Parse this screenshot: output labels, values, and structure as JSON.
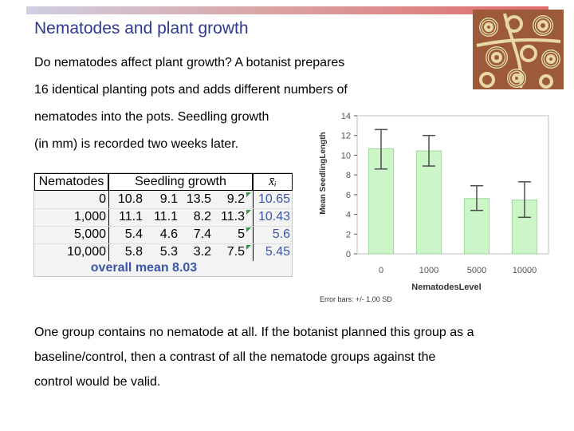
{
  "slide": {
    "title": "Nematodes and plant growth",
    "intro_lines": [
      "Do nematodes affect plant growth? A botanist prepares",
      "16 identical planting pots and adds different numbers of",
      "nematodes into the pots. Seedling growth",
      "(in mm) is recorded two weeks later."
    ],
    "bottom_lines": [
      "One group contains no nematode at all. If the botanist planned this group as a",
      "baseline/control, then a contrast of all the nematode groups against the",
      "control would be valid."
    ],
    "photo_icon": "nematodes-photo"
  },
  "table": {
    "header_nematodes": "Nematodes",
    "header_growth": "Seedling growth",
    "header_mean": "x̄ᵢ",
    "rows": [
      {
        "level": "0",
        "values": [
          "10.8",
          "9.1",
          "13.5",
          "9.2"
        ],
        "mean": "10.65"
      },
      {
        "level": "1,000",
        "values": [
          "11.1",
          "11.1",
          "8.2",
          "11.3"
        ],
        "mean": "10.43"
      },
      {
        "level": "5,000",
        "values": [
          "5.4",
          "4.6",
          "7.4",
          "5"
        ],
        "mean": "5.6"
      },
      {
        "level": "10,000",
        "values": [
          "5.8",
          "5.3",
          "3.2",
          "7.5"
        ],
        "mean": "5.45"
      }
    ],
    "overall": "overall mean 8.03"
  },
  "chart_data": {
    "type": "bar",
    "categories": [
      "0",
      "1000",
      "5000",
      "10000"
    ],
    "values": [
      10.65,
      10.43,
      5.6,
      5.45
    ],
    "error_low": [
      8.6,
      8.9,
      4.4,
      3.7
    ],
    "error_high": [
      12.6,
      12.0,
      6.9,
      7.3
    ],
    "xlabel": "NematodesLevel",
    "ylabel": "Mean SeedlingLength",
    "ylim": [
      0,
      14
    ],
    "yticks": [
      "0",
      "2",
      "4",
      "6",
      "8",
      "10",
      "12",
      "14"
    ],
    "footnote": "Error bars: +/- 1.00 SD",
    "bar_color": "#ccf5c8",
    "bar_edge": "#9ad99a"
  }
}
